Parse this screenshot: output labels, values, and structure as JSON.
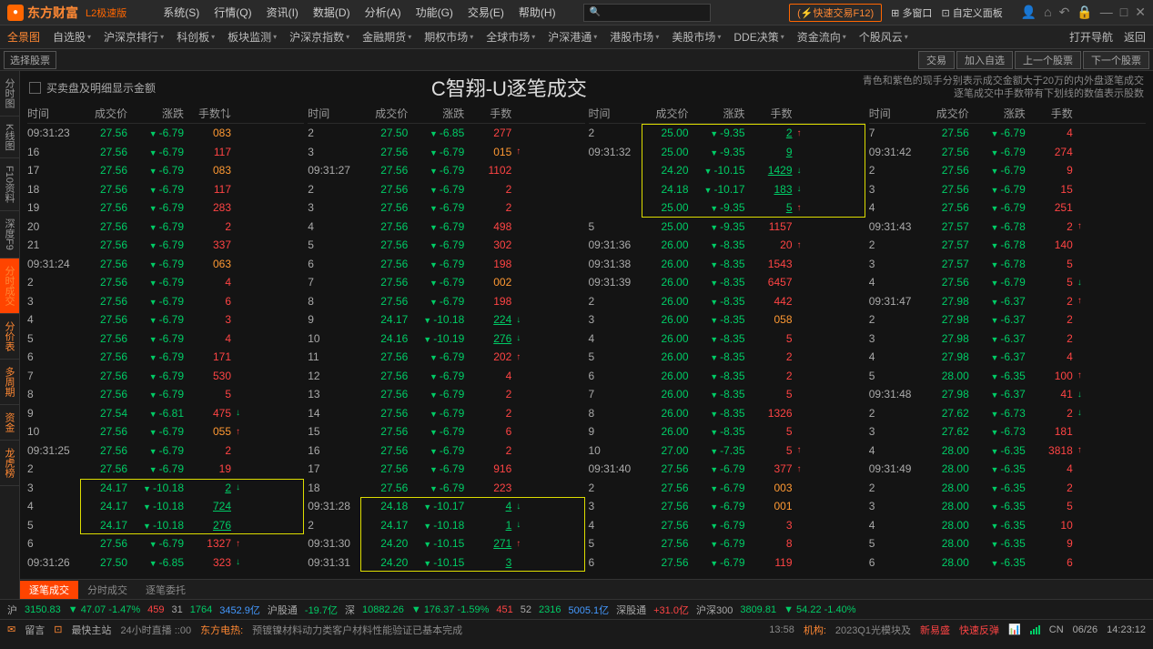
{
  "titlebar": {
    "logo_text": "东方财富",
    "logo_sub": "L2极速版",
    "menus": [
      "系统(S)",
      "行情(Q)",
      "资讯(I)",
      "数据(D)",
      "分析(A)",
      "功能(G)",
      "交易(E)",
      "帮助(H)"
    ],
    "quick_trade": "快速交易F12",
    "multi_window": "多窗口",
    "custom_panel": "自定义面板"
  },
  "navbar": {
    "items": [
      "全景图",
      "自选股",
      "沪深京排行",
      "科创板",
      "板块监测",
      "沪深京指数",
      "金融期货",
      "期权市场",
      "全球市场",
      "沪深港通",
      "港股市场",
      "美股市场",
      "DDE决策",
      "资金流向",
      "个股风云"
    ],
    "open_nav": "打开导航",
    "back": "返回"
  },
  "actionbar": {
    "select_stock": "选择股票",
    "buttons": [
      "交易",
      "加入自选",
      "上一个股票",
      "下一个股票"
    ]
  },
  "left_tabs": [
    "分时图",
    "K线图",
    "F10资料",
    "深度F9",
    "分时成交",
    "分价表",
    "多周期",
    "资金",
    "龙虎榜"
  ],
  "header": {
    "checkbox_label": "买卖盘及明细显示金额",
    "title": "C智翔-U逐笔成交",
    "note1": "青色和紫色的现手分别表示成交金额大于20万的内外盘逐笔成交",
    "note2": "逐笔成交中手数带有下划线的数值表示股数"
  },
  "col_headers": {
    "time": "时间",
    "price": "成交价",
    "chg": "涨跌",
    "vol": "手数",
    "vol_f": "手数⇅"
  },
  "colors": {
    "green": "#00cc66",
    "red": "#ff4444",
    "orange": "#ff9933",
    "white": "#dddddd",
    "yellow": "#dddd00",
    "bg": "#141414"
  },
  "columns": [
    [
      {
        "t": "09:31:23",
        "p": "27.56",
        "c": "-6.79",
        "v": "083",
        "pc": "green",
        "vc": "orange"
      },
      {
        "t": "16",
        "p": "27.56",
        "c": "-6.79",
        "v": "117",
        "pc": "green",
        "vc": "red"
      },
      {
        "t": "17",
        "p": "27.56",
        "c": "-6.79",
        "v": "083",
        "pc": "green",
        "vc": "orange"
      },
      {
        "t": "18",
        "p": "27.56",
        "c": "-6.79",
        "v": "117",
        "pc": "green",
        "vc": "red"
      },
      {
        "t": "19",
        "p": "27.56",
        "c": "-6.79",
        "v": "283",
        "pc": "green",
        "vc": "red"
      },
      {
        "t": "20",
        "p": "27.56",
        "c": "-6.79",
        "v": "2",
        "pc": "green",
        "vc": "red"
      },
      {
        "t": "21",
        "p": "27.56",
        "c": "-6.79",
        "v": "337",
        "pc": "green",
        "vc": "red"
      },
      {
        "t": "09:31:24",
        "p": "27.56",
        "c": "-6.79",
        "v": "063",
        "pc": "green",
        "vc": "orange"
      },
      {
        "t": "2",
        "p": "27.56",
        "c": "-6.79",
        "v": "4",
        "pc": "green",
        "vc": "red"
      },
      {
        "t": "3",
        "p": "27.56",
        "c": "-6.79",
        "v": "6",
        "pc": "green",
        "vc": "red"
      },
      {
        "t": "4",
        "p": "27.56",
        "c": "-6.79",
        "v": "3",
        "pc": "green",
        "vc": "red"
      },
      {
        "t": "5",
        "p": "27.56",
        "c": "-6.79",
        "v": "4",
        "pc": "green",
        "vc": "red"
      },
      {
        "t": "6",
        "p": "27.56",
        "c": "-6.79",
        "v": "171",
        "pc": "green",
        "vc": "red"
      },
      {
        "t": "7",
        "p": "27.56",
        "c": "-6.79",
        "v": "530",
        "pc": "green",
        "vc": "red"
      },
      {
        "t": "8",
        "p": "27.56",
        "c": "-6.79",
        "v": "5",
        "pc": "green",
        "vc": "red"
      },
      {
        "t": "9",
        "p": "27.54",
        "c": "-6.81",
        "v": "475",
        "pc": "green",
        "vc": "red",
        "arr": "↓",
        "ac": "green"
      },
      {
        "t": "10",
        "p": "27.56",
        "c": "-6.79",
        "v": "055",
        "pc": "green",
        "vc": "orange",
        "arr": "↑",
        "ac": "red"
      },
      {
        "t": "09:31:25",
        "p": "27.56",
        "c": "-6.79",
        "v": "2",
        "pc": "green",
        "vc": "red"
      },
      {
        "t": "2",
        "p": "27.56",
        "c": "-6.79",
        "v": "19",
        "pc": "green",
        "vc": "red"
      },
      {
        "t": "3",
        "p": "24.17",
        "c": "-10.18",
        "v": "2",
        "pc": "green",
        "vc": "green",
        "ul": true,
        "arr": "↓",
        "ac": "green",
        "box": "start"
      },
      {
        "t": "4",
        "p": "24.17",
        "c": "-10.18",
        "v": "724",
        "pc": "green",
        "vc": "green",
        "ul": true,
        "box": "mid"
      },
      {
        "t": "5",
        "p": "24.17",
        "c": "-10.18",
        "v": "276",
        "pc": "green",
        "vc": "green",
        "ul": true,
        "box": "end"
      },
      {
        "t": "6",
        "p": "27.56",
        "c": "-6.79",
        "v": "1327",
        "pc": "green",
        "vc": "red",
        "arr": "↑",
        "ac": "red"
      },
      {
        "t": "09:31:26",
        "p": "27.50",
        "c": "-6.85",
        "v": "323",
        "pc": "green",
        "vc": "red",
        "arr": "↓",
        "ac": "green"
      }
    ],
    [
      {
        "t": "2",
        "p": "27.50",
        "c": "-6.85",
        "v": "277",
        "pc": "green",
        "vc": "red"
      },
      {
        "t": "3",
        "p": "27.56",
        "c": "-6.79",
        "v": "015",
        "pc": "green",
        "vc": "orange",
        "arr": "↑",
        "ac": "red"
      },
      {
        "t": "09:31:27",
        "p": "27.56",
        "c": "-6.79",
        "v": "1102",
        "pc": "green",
        "vc": "red"
      },
      {
        "t": "2",
        "p": "27.56",
        "c": "-6.79",
        "v": "2",
        "pc": "green",
        "vc": "red"
      },
      {
        "t": "3",
        "p": "27.56",
        "c": "-6.79",
        "v": "2",
        "pc": "green",
        "vc": "red"
      },
      {
        "t": "4",
        "p": "27.56",
        "c": "-6.79",
        "v": "498",
        "pc": "green",
        "vc": "red"
      },
      {
        "t": "5",
        "p": "27.56",
        "c": "-6.79",
        "v": "302",
        "pc": "green",
        "vc": "red"
      },
      {
        "t": "6",
        "p": "27.56",
        "c": "-6.79",
        "v": "198",
        "pc": "green",
        "vc": "red"
      },
      {
        "t": "7",
        "p": "27.56",
        "c": "-6.79",
        "v": "002",
        "pc": "green",
        "vc": "orange"
      },
      {
        "t": "8",
        "p": "27.56",
        "c": "-6.79",
        "v": "198",
        "pc": "green",
        "vc": "red"
      },
      {
        "t": "9",
        "p": "24.17",
        "c": "-10.18",
        "v": "224",
        "pc": "green",
        "vc": "green",
        "ul": true,
        "arr": "↓",
        "ac": "green"
      },
      {
        "t": "10",
        "p": "24.16",
        "c": "-10.19",
        "v": "276",
        "pc": "green",
        "vc": "green",
        "ul": true,
        "arr": "↓",
        "ac": "green"
      },
      {
        "t": "11",
        "p": "27.56",
        "c": "-6.79",
        "v": "202",
        "pc": "green",
        "vc": "red",
        "arr": "↑",
        "ac": "red"
      },
      {
        "t": "12",
        "p": "27.56",
        "c": "-6.79",
        "v": "4",
        "pc": "green",
        "vc": "red"
      },
      {
        "t": "13",
        "p": "27.56",
        "c": "-6.79",
        "v": "2",
        "pc": "green",
        "vc": "red"
      },
      {
        "t": "14",
        "p": "27.56",
        "c": "-6.79",
        "v": "2",
        "pc": "green",
        "vc": "red"
      },
      {
        "t": "15",
        "p": "27.56",
        "c": "-6.79",
        "v": "6",
        "pc": "green",
        "vc": "red"
      },
      {
        "t": "16",
        "p": "27.56",
        "c": "-6.79",
        "v": "2",
        "pc": "green",
        "vc": "red"
      },
      {
        "t": "17",
        "p": "27.56",
        "c": "-6.79",
        "v": "916",
        "pc": "green",
        "vc": "red"
      },
      {
        "t": "18",
        "p": "27.56",
        "c": "-6.79",
        "v": "223",
        "pc": "green",
        "vc": "red"
      },
      {
        "t": "09:31:28",
        "p": "24.18",
        "c": "-10.17",
        "v": "4",
        "pc": "green",
        "vc": "green",
        "ul": true,
        "arr": "↓",
        "ac": "green",
        "box": "start"
      },
      {
        "t": "2",
        "p": "24.17",
        "c": "-10.18",
        "v": "1",
        "pc": "green",
        "vc": "green",
        "ul": true,
        "arr": "↓",
        "ac": "green",
        "box": "mid"
      },
      {
        "t": "09:31:30",
        "p": "24.20",
        "c": "-10.15",
        "v": "271",
        "pc": "green",
        "vc": "green",
        "ul": true,
        "arr": "↑",
        "ac": "red",
        "box": "mid"
      },
      {
        "t": "09:31:31",
        "p": "24.20",
        "c": "-10.15",
        "v": "3",
        "pc": "green",
        "vc": "green",
        "ul": true,
        "box": "end"
      }
    ],
    [
      {
        "t": "2",
        "p": "25.00",
        "c": "-9.35",
        "v": "2",
        "pc": "green",
        "vc": "green",
        "ul": true,
        "arr": "↑",
        "ac": "red",
        "box": "start"
      },
      {
        "t": "09:31:32",
        "p": "25.00",
        "c": "-9.35",
        "v": "9",
        "pc": "green",
        "vc": "green",
        "ul": true,
        "box": "mid"
      },
      {
        "t": "",
        "p": "24.20",
        "c": "-10.15",
        "v": "1429",
        "pc": "green",
        "vc": "green",
        "ul": true,
        "arr": "↓",
        "ac": "green",
        "box": "mid"
      },
      {
        "t": "",
        "p": "24.18",
        "c": "-10.17",
        "v": "183",
        "pc": "green",
        "vc": "green",
        "ul": true,
        "arr": "↓",
        "ac": "green",
        "box": "mid"
      },
      {
        "t": "",
        "p": "25.00",
        "c": "-9.35",
        "v": "5",
        "pc": "green",
        "vc": "green",
        "ul": true,
        "arr": "↑",
        "ac": "red",
        "box": "end"
      },
      {
        "t": "5",
        "p": "25.00",
        "c": "-9.35",
        "v": "1157",
        "pc": "green",
        "vc": "red"
      },
      {
        "t": "09:31:36",
        "p": "26.00",
        "c": "-8.35",
        "v": "20",
        "pc": "green",
        "vc": "red",
        "arr": "↑",
        "ac": "red"
      },
      {
        "t": "09:31:38",
        "p": "26.00",
        "c": "-8.35",
        "v": "1543",
        "pc": "green",
        "vc": "red"
      },
      {
        "t": "09:31:39",
        "p": "26.00",
        "c": "-8.35",
        "v": "6457",
        "pc": "green",
        "vc": "red"
      },
      {
        "t": "2",
        "p": "26.00",
        "c": "-8.35",
        "v": "442",
        "pc": "green",
        "vc": "red"
      },
      {
        "t": "3",
        "p": "26.00",
        "c": "-8.35",
        "v": "058",
        "pc": "green",
        "vc": "orange"
      },
      {
        "t": "4",
        "p": "26.00",
        "c": "-8.35",
        "v": "5",
        "pc": "green",
        "vc": "red"
      },
      {
        "t": "5",
        "p": "26.00",
        "c": "-8.35",
        "v": "2",
        "pc": "green",
        "vc": "red"
      },
      {
        "t": "6",
        "p": "26.00",
        "c": "-8.35",
        "v": "2",
        "pc": "green",
        "vc": "red"
      },
      {
        "t": "7",
        "p": "26.00",
        "c": "-8.35",
        "v": "5",
        "pc": "green",
        "vc": "red"
      },
      {
        "t": "8",
        "p": "26.00",
        "c": "-8.35",
        "v": "1326",
        "pc": "green",
        "vc": "red"
      },
      {
        "t": "9",
        "p": "26.00",
        "c": "-8.35",
        "v": "5",
        "pc": "green",
        "vc": "red"
      },
      {
        "t": "10",
        "p": "27.00",
        "c": "-7.35",
        "v": "5",
        "pc": "green",
        "vc": "red",
        "arr": "↑",
        "ac": "red"
      },
      {
        "t": "09:31:40",
        "p": "27.56",
        "c": "-6.79",
        "v": "377",
        "pc": "green",
        "vc": "red",
        "arr": "↑",
        "ac": "red"
      },
      {
        "t": "2",
        "p": "27.56",
        "c": "-6.79",
        "v": "003",
        "pc": "green",
        "vc": "orange"
      },
      {
        "t": "3",
        "p": "27.56",
        "c": "-6.79",
        "v": "001",
        "pc": "green",
        "vc": "orange"
      },
      {
        "t": "4",
        "p": "27.56",
        "c": "-6.79",
        "v": "3",
        "pc": "green",
        "vc": "red"
      },
      {
        "t": "5",
        "p": "27.56",
        "c": "-6.79",
        "v": "8",
        "pc": "green",
        "vc": "red"
      },
      {
        "t": "6",
        "p": "27.56",
        "c": "-6.79",
        "v": "119",
        "pc": "green",
        "vc": "red"
      }
    ],
    [
      {
        "t": "7",
        "p": "27.56",
        "c": "-6.79",
        "v": "4",
        "pc": "green",
        "vc": "red"
      },
      {
        "t": "09:31:42",
        "p": "27.56",
        "c": "-6.79",
        "v": "274",
        "pc": "green",
        "vc": "red"
      },
      {
        "t": "2",
        "p": "27.56",
        "c": "-6.79",
        "v": "9",
        "pc": "green",
        "vc": "red"
      },
      {
        "t": "3",
        "p": "27.56",
        "c": "-6.79",
        "v": "15",
        "pc": "green",
        "vc": "red"
      },
      {
        "t": "4",
        "p": "27.56",
        "c": "-6.79",
        "v": "251",
        "pc": "green",
        "vc": "red"
      },
      {
        "t": "09:31:43",
        "p": "27.57",
        "c": "-6.78",
        "v": "2",
        "pc": "green",
        "vc": "red",
        "arr": "↑",
        "ac": "red"
      },
      {
        "t": "2",
        "p": "27.57",
        "c": "-6.78",
        "v": "140",
        "pc": "green",
        "vc": "red"
      },
      {
        "t": "3",
        "p": "27.57",
        "c": "-6.78",
        "v": "5",
        "pc": "green",
        "vc": "red"
      },
      {
        "t": "4",
        "p": "27.56",
        "c": "-6.79",
        "v": "5",
        "pc": "green",
        "vc": "red",
        "arr": "↓",
        "ac": "green"
      },
      {
        "t": "09:31:47",
        "p": "27.98",
        "c": "-6.37",
        "v": "2",
        "pc": "green",
        "vc": "red",
        "arr": "↑",
        "ac": "red"
      },
      {
        "t": "2",
        "p": "27.98",
        "c": "-6.37",
        "v": "2",
        "pc": "green",
        "vc": "red"
      },
      {
        "t": "3",
        "p": "27.98",
        "c": "-6.37",
        "v": "2",
        "pc": "green",
        "vc": "red"
      },
      {
        "t": "4",
        "p": "27.98",
        "c": "-6.37",
        "v": "4",
        "pc": "green",
        "vc": "red"
      },
      {
        "t": "5",
        "p": "28.00",
        "c": "-6.35",
        "v": "100",
        "pc": "green",
        "vc": "red",
        "arr": "↑",
        "ac": "red"
      },
      {
        "t": "09:31:48",
        "p": "27.98",
        "c": "-6.37",
        "v": "41",
        "pc": "green",
        "vc": "red",
        "arr": "↓",
        "ac": "green"
      },
      {
        "t": "2",
        "p": "27.62",
        "c": "-6.73",
        "v": "2",
        "pc": "green",
        "vc": "red",
        "arr": "↓",
        "ac": "green"
      },
      {
        "t": "3",
        "p": "27.62",
        "c": "-6.73",
        "v": "181",
        "pc": "green",
        "vc": "red"
      },
      {
        "t": "4",
        "p": "28.00",
        "c": "-6.35",
        "v": "3818",
        "pc": "green",
        "vc": "red",
        "arr": "↑",
        "ac": "red"
      },
      {
        "t": "09:31:49",
        "p": "28.00",
        "c": "-6.35",
        "v": "4",
        "pc": "green",
        "vc": "red"
      },
      {
        "t": "2",
        "p": "28.00",
        "c": "-6.35",
        "v": "2",
        "pc": "green",
        "vc": "red"
      },
      {
        "t": "3",
        "p": "28.00",
        "c": "-6.35",
        "v": "5",
        "pc": "green",
        "vc": "red"
      },
      {
        "t": "4",
        "p": "28.00",
        "c": "-6.35",
        "v": "10",
        "pc": "green",
        "vc": "red"
      },
      {
        "t": "5",
        "p": "28.00",
        "c": "-6.35",
        "v": "9",
        "pc": "green",
        "vc": "red"
      },
      {
        "t": "6",
        "p": "28.00",
        "c": "-6.35",
        "v": "6",
        "pc": "green",
        "vc": "red"
      }
    ]
  ],
  "bottom_tabs": [
    "逐笔成交",
    "分时成交",
    "逐笔委托"
  ],
  "status": {
    "items": [
      {
        "lbl": "沪",
        "cls": "lbl"
      },
      {
        "lbl": "3150.83",
        "cls": "dn"
      },
      {
        "lbl": "▼ 47.07 -1.47%",
        "cls": "dn"
      },
      {
        "lbl": "459",
        "cls": "up"
      },
      {
        "lbl": "31",
        "cls": "lbl"
      },
      {
        "lbl": "1764",
        "cls": "dn"
      },
      {
        "lbl": "3452.9亿",
        "cls": "blue"
      },
      {
        "lbl": "沪股通",
        "cls": "lbl"
      },
      {
        "lbl": "-19.7亿",
        "cls": "dn"
      },
      {
        "lbl": "深",
        "cls": "lbl"
      },
      {
        "lbl": "10882.26",
        "cls": "dn"
      },
      {
        "lbl": "▼ 176.37 -1.59%",
        "cls": "dn"
      },
      {
        "lbl": "451",
        "cls": "up"
      },
      {
        "lbl": "52",
        "cls": "lbl"
      },
      {
        "lbl": "2316",
        "cls": "dn"
      },
      {
        "lbl": "5005.1亿",
        "cls": "blue"
      },
      {
        "lbl": "深股通",
        "cls": "lbl"
      },
      {
        "lbl": "+31.0亿",
        "cls": "up"
      },
      {
        "lbl": "沪深300",
        "cls": "lbl"
      },
      {
        "lbl": "3809.81",
        "cls": "dn"
      },
      {
        "lbl": "▼ 54.22 -1.40%",
        "cls": "dn"
      }
    ]
  },
  "ticker": {
    "msg_label": "留言",
    "host_label": "最快主站",
    "live": "24小时直播 ::00",
    "news_src": "东方电热:",
    "news_text": "预镀镍材料动力类客户材料性能验证已基本完成",
    "time": "13:58",
    "jigou": "机构:",
    "jigou_text": "2023Q1光模块及",
    "xinyi": "新易盛",
    "kuaisu": "快速反弹",
    "cn": "CN",
    "date": "06/26",
    "clock": "14:23:12"
  }
}
